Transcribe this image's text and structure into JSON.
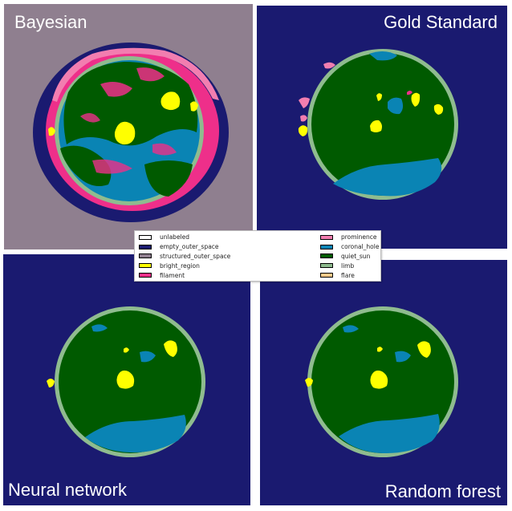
{
  "panels": {
    "bayesian": {
      "title": "Bayesian"
    },
    "gold": {
      "title": "Gold Standard"
    },
    "neural": {
      "title": "Neural network"
    },
    "forest": {
      "title": "Random forest"
    }
  },
  "legend": {
    "left": [
      {
        "label": "unlabeled",
        "color": "#ffffff"
      },
      {
        "label": "empty_outer_space",
        "color": "#1a1a70"
      },
      {
        "label": "structured_outer_space",
        "color": "#8f7f8f"
      },
      {
        "label": "bright_region",
        "color": "#ffff00"
      },
      {
        "label": "filament",
        "color": "#ee2f8a"
      }
    ],
    "right": [
      {
        "label": "prominence",
        "color": "#f27eb0"
      },
      {
        "label": "coronal_hole",
        "color": "#0a84b4"
      },
      {
        "label": "quiet_sun",
        "color": "#005a00"
      },
      {
        "label": "limb",
        "color": "#8fbc8f"
      },
      {
        "label": "flare",
        "color": "#f5c98a"
      }
    ]
  }
}
